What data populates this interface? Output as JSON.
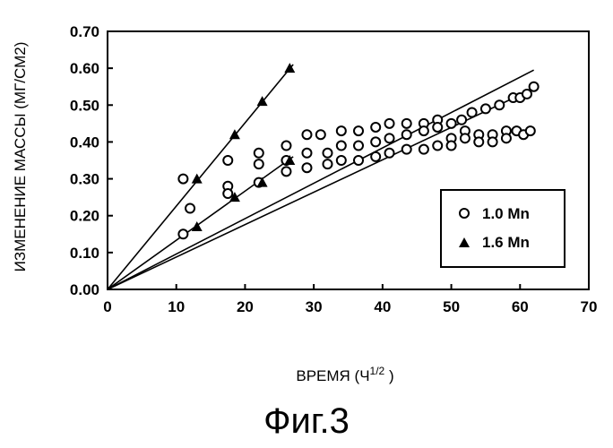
{
  "caption": "Фиг.3",
  "chart_data": {
    "type": "scatter",
    "xlabel": "ВРЕМЯ (Ч",
    "xlabel_sup": "1/2",
    "xlabel_tail": " )",
    "ylabel": "ИЗМЕНЕНИЕ МАССЫ (МГ/СМ2)",
    "xlim": [
      0,
      70
    ],
    "ylim": [
      0,
      0.7
    ],
    "x_ticks": [
      "0",
      "10",
      "20",
      "30",
      "40",
      "50",
      "60",
      "70"
    ],
    "y_ticks": [
      "0.00",
      "0.10",
      "0.20",
      "0.30",
      "0.40",
      "0.50",
      "0.60",
      "0.70"
    ],
    "grid": false,
    "legend_position": "inside-right",
    "series": [
      {
        "name": "1.0 Mn",
        "marker": "open-circle",
        "points": [
          [
            11,
            0.3
          ],
          [
            12,
            0.22
          ],
          [
            11,
            0.15
          ],
          [
            17.5,
            0.35
          ],
          [
            17.5,
            0.28
          ],
          [
            17.5,
            0.26
          ],
          [
            22,
            0.37
          ],
          [
            22,
            0.34
          ],
          [
            22,
            0.29
          ],
          [
            26,
            0.39
          ],
          [
            26,
            0.35
          ],
          [
            26,
            0.32
          ],
          [
            29,
            0.42
          ],
          [
            29,
            0.37
          ],
          [
            29,
            0.33
          ],
          [
            31,
            0.42
          ],
          [
            32,
            0.37
          ],
          [
            32,
            0.34
          ],
          [
            34,
            0.43
          ],
          [
            34,
            0.39
          ],
          [
            34,
            0.35
          ],
          [
            36.5,
            0.43
          ],
          [
            36.5,
            0.39
          ],
          [
            36.5,
            0.35
          ],
          [
            39,
            0.44
          ],
          [
            39,
            0.4
          ],
          [
            39,
            0.36
          ],
          [
            41,
            0.45
          ],
          [
            41,
            0.41
          ],
          [
            41,
            0.37
          ],
          [
            43.5,
            0.45
          ],
          [
            43.5,
            0.42
          ],
          [
            43.5,
            0.38
          ],
          [
            46,
            0.45
          ],
          [
            46,
            0.43
          ],
          [
            46,
            0.38
          ],
          [
            48,
            0.46
          ],
          [
            48,
            0.44
          ],
          [
            48,
            0.39
          ],
          [
            50,
            0.45
          ],
          [
            50,
            0.41
          ],
          [
            50,
            0.39
          ],
          [
            51.5,
            0.46
          ],
          [
            52,
            0.43
          ],
          [
            52,
            0.41
          ],
          [
            53,
            0.48
          ],
          [
            54,
            0.42
          ],
          [
            54,
            0.4
          ],
          [
            55,
            0.49
          ],
          [
            56,
            0.42
          ],
          [
            56,
            0.4
          ],
          [
            57,
            0.5
          ],
          [
            58,
            0.43
          ],
          [
            58,
            0.41
          ],
          [
            59,
            0.52
          ],
          [
            59.5,
            0.43
          ],
          [
            60,
            0.52
          ],
          [
            60.5,
            0.42
          ],
          [
            61,
            0.53
          ],
          [
            61.5,
            0.43
          ],
          [
            62,
            0.55
          ]
        ]
      },
      {
        "name": "1.6 Mn",
        "marker": "filled-triangle",
        "points": [
          [
            13,
            0.3
          ],
          [
            13,
            0.17
          ],
          [
            18.5,
            0.42
          ],
          [
            18.5,
            0.25
          ],
          [
            22.5,
            0.51
          ],
          [
            22.5,
            0.29
          ],
          [
            26.5,
            0.6
          ],
          [
            26.5,
            0.35
          ]
        ]
      }
    ],
    "fit_lines": [
      [
        [
          0,
          0
        ],
        [
          27,
          0.61
        ]
      ],
      [
        [
          0,
          0
        ],
        [
          27,
          0.36
        ]
      ],
      [
        [
          0,
          0
        ],
        [
          62,
          0.595
        ]
      ],
      [
        [
          0,
          0
        ],
        [
          62,
          0.545
        ]
      ]
    ]
  }
}
